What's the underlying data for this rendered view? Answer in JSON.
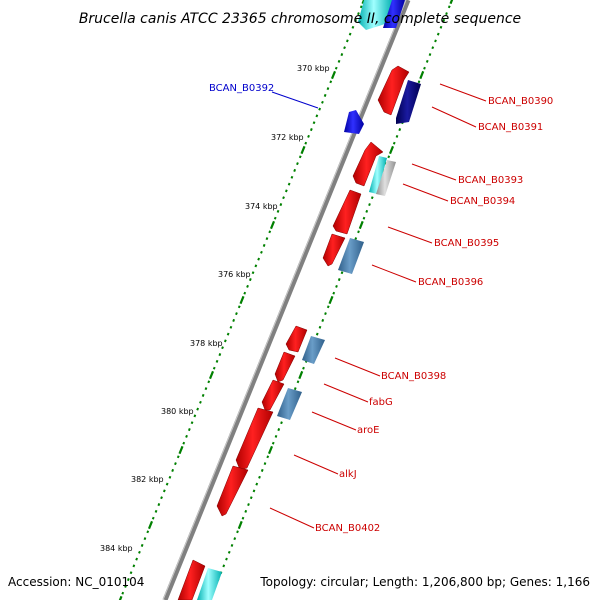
{
  "title": "Brucella canis ATCC 23365 chromosome II, complete sequence",
  "accession": "Accession: NC_010104",
  "summary": "Topology: circular; Length: 1,206,800 bp; Genes: 1,166",
  "colors": {
    "backbone": "#808080",
    "forward_gene": "#ff0000",
    "reverse_gene": "#4682b4",
    "blue_gene": "#0000ff",
    "navy_gene": "#000080",
    "cyan_gene": "#00ffff",
    "gray_gene": "#c0c0c0",
    "ticks": "#008000",
    "label_red": "#cc0000",
    "label_blue": "#0000cc"
  },
  "ticks": [
    {
      "label": "370 kbp"
    },
    {
      "label": "372 kbp"
    },
    {
      "label": "374 kbp"
    },
    {
      "label": "376 kbp"
    },
    {
      "label": "378 kbp"
    },
    {
      "label": "380 kbp"
    },
    {
      "label": "382 kbp"
    },
    {
      "label": "384 kbp"
    }
  ],
  "gene_labels": [
    {
      "text": "BCAN_B0392",
      "color": "blue"
    },
    {
      "text": "BCAN_B0390",
      "color": "red"
    },
    {
      "text": "BCAN_B0391",
      "color": "red"
    },
    {
      "text": "BCAN_B0393",
      "color": "red"
    },
    {
      "text": "BCAN_B0394",
      "color": "red"
    },
    {
      "text": "BCAN_B0395",
      "color": "red"
    },
    {
      "text": "BCAN_B0396",
      "color": "red"
    },
    {
      "text": "BCAN_B0398",
      "color": "red"
    },
    {
      "text": "fabG",
      "color": "red"
    },
    {
      "text": "aroE",
      "color": "red"
    },
    {
      "text": "alkJ",
      "color": "red"
    },
    {
      "text": "BCAN_B0402",
      "color": "red"
    }
  ]
}
